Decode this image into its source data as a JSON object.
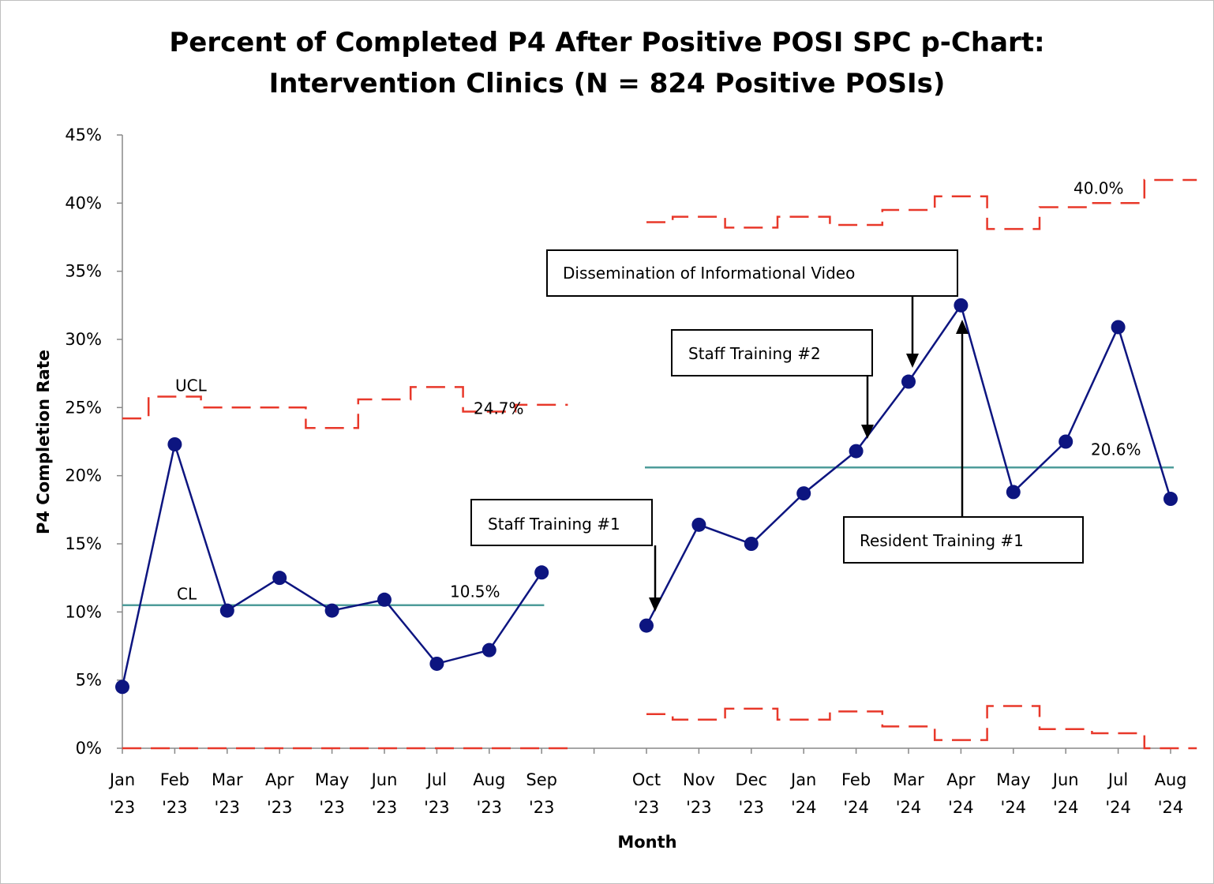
{
  "chart_data": {
    "type": "line",
    "title": "Percent of Completed P4 After Positive POSI SPC p-Chart:",
    "subtitle": "Intervention Clinics (N = 824 Positive POSIs)",
    "xlabel": "Month",
    "ylabel": "P4 Completion Rate",
    "ylim": [
      0,
      45
    ],
    "yticks": [
      "0%",
      "5%",
      "10%",
      "15%",
      "20%",
      "25%",
      "30%",
      "35%",
      "40%",
      "45%"
    ],
    "categories": [
      [
        "Jan",
        "'23"
      ],
      [
        "Feb",
        "'23"
      ],
      [
        "Mar",
        "'23"
      ],
      [
        "Apr",
        "'23"
      ],
      [
        "May",
        "'23"
      ],
      [
        "Jun",
        "'23"
      ],
      [
        "Jul",
        "'23"
      ],
      [
        "Aug",
        "'23"
      ],
      [
        "Sep",
        "'23"
      ],
      [
        "",
        ""
      ],
      [
        "Oct",
        "'23"
      ],
      [
        "Nov",
        "'23"
      ],
      [
        "Dec",
        "'23"
      ],
      [
        "Jan",
        "'24"
      ],
      [
        "Feb",
        "'24"
      ],
      [
        "Mar",
        "'24"
      ],
      [
        "Apr",
        "'24"
      ],
      [
        "May",
        "'24"
      ],
      [
        "Jun",
        "'24"
      ],
      [
        "Jul",
        "'24"
      ],
      [
        "Aug",
        "'24"
      ]
    ],
    "grid": false,
    "colors": {
      "series": "#0d1580",
      "control_limits": "#e8382a",
      "center_line": "#4e9c9a"
    },
    "phases": [
      {
        "indices": [
          0,
          1,
          2,
          3,
          4,
          5,
          6,
          7,
          8
        ],
        "rate": [
          4.5,
          22.3,
          10.1,
          12.5,
          10.1,
          10.9,
          6.2,
          7.2,
          12.9
        ],
        "ucl": [
          24.2,
          25.8,
          25.0,
          25.0,
          23.5,
          25.6,
          26.5,
          24.7,
          25.2
        ],
        "lcl": [
          0,
          0,
          0,
          0,
          0,
          0,
          0,
          0,
          0
        ],
        "cl": 10.5,
        "cl_label": "10.5%",
        "ucl_label": "24.7%"
      },
      {
        "indices": [
          10,
          11,
          12,
          13,
          14,
          15,
          16,
          17,
          18,
          19,
          20
        ],
        "rate": [
          9.0,
          16.4,
          15.0,
          18.7,
          21.8,
          26.9,
          32.5,
          18.8,
          22.5,
          30.9,
          18.3
        ],
        "ucl": [
          38.6,
          39.0,
          38.2,
          39.0,
          38.4,
          39.5,
          40.5,
          38.1,
          39.7,
          40.0,
          41.7
        ],
        "lcl": [
          2.5,
          2.1,
          2.9,
          2.1,
          2.7,
          1.6,
          0.6,
          3.1,
          1.4,
          1.1,
          0
        ],
        "cl": 20.6,
        "cl_label": "20.6%",
        "ucl_label": "40.0%"
      }
    ],
    "legend_labels": {
      "ucl": "UCL",
      "cl": "CL"
    },
    "annotations": [
      {
        "text": "Staff Training #1",
        "target_index": 10,
        "target_value": 9.0
      },
      {
        "text": "Staff Training #2",
        "target_index": 14,
        "target_value": 21.8
      },
      {
        "text": "Dissemination of Informational Video",
        "target_index": 15,
        "target_value": 26.9
      },
      {
        "text": "Resident Training #1",
        "target_index": 16,
        "target_value": 32.5
      }
    ]
  }
}
